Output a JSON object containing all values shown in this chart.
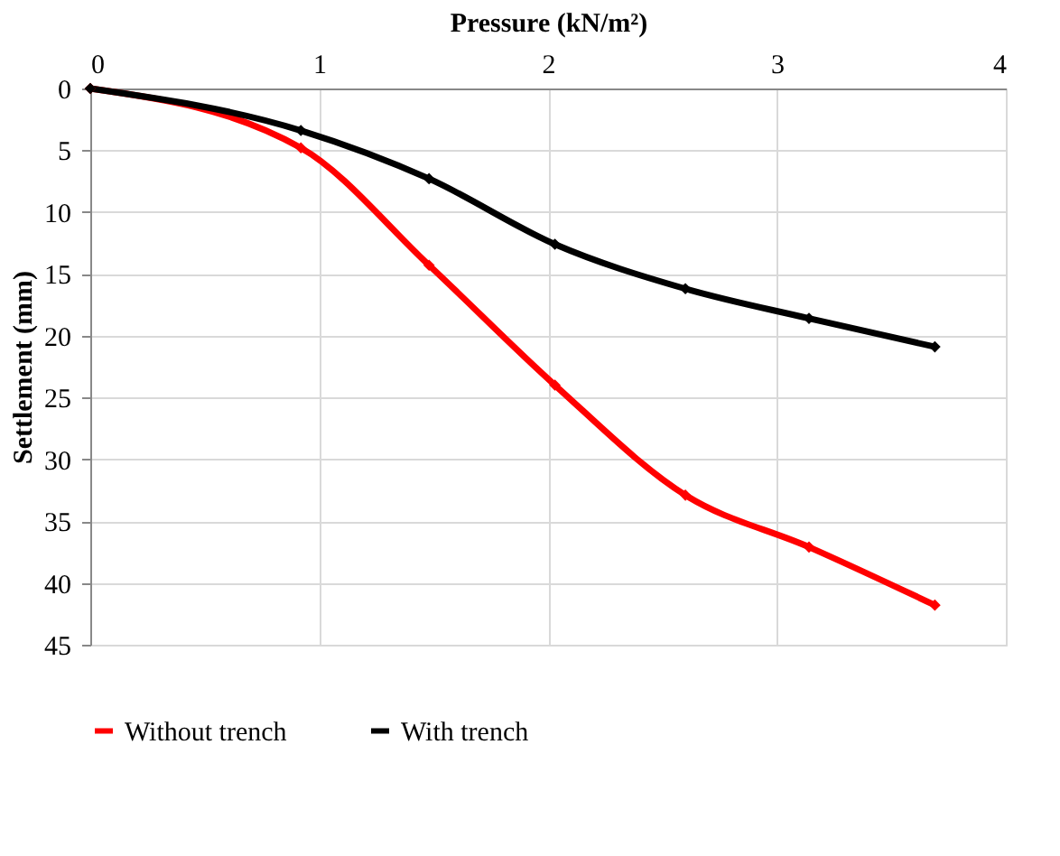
{
  "chart_data": {
    "type": "line",
    "xlabel": "Pressure (kN/m²)",
    "ylabel": "Settlement (mm)",
    "xlim": [
      0,
      4
    ],
    "xticks": [
      0,
      1,
      2,
      3,
      4
    ],
    "ylim": [
      45,
      0
    ],
    "yticks": [
      0,
      5,
      10,
      15,
      20,
      25,
      30,
      35,
      40,
      45
    ],
    "x": [
      0,
      0.92,
      1.48,
      2.03,
      2.6,
      3.14,
      3.69
    ],
    "series": [
      {
        "name": "Without trench",
        "color": "#ff0000",
        "values": [
          0,
          4.8,
          14.3,
          24.0,
          32.9,
          37.1,
          41.8
        ]
      },
      {
        "name": "With trench",
        "color": "#000000",
        "values": [
          0,
          3.4,
          7.3,
          12.6,
          16.2,
          18.6,
          20.9
        ]
      }
    ],
    "grid": true,
    "legend": "bottom",
    "marker": "diamond",
    "line_style": "solid"
  }
}
